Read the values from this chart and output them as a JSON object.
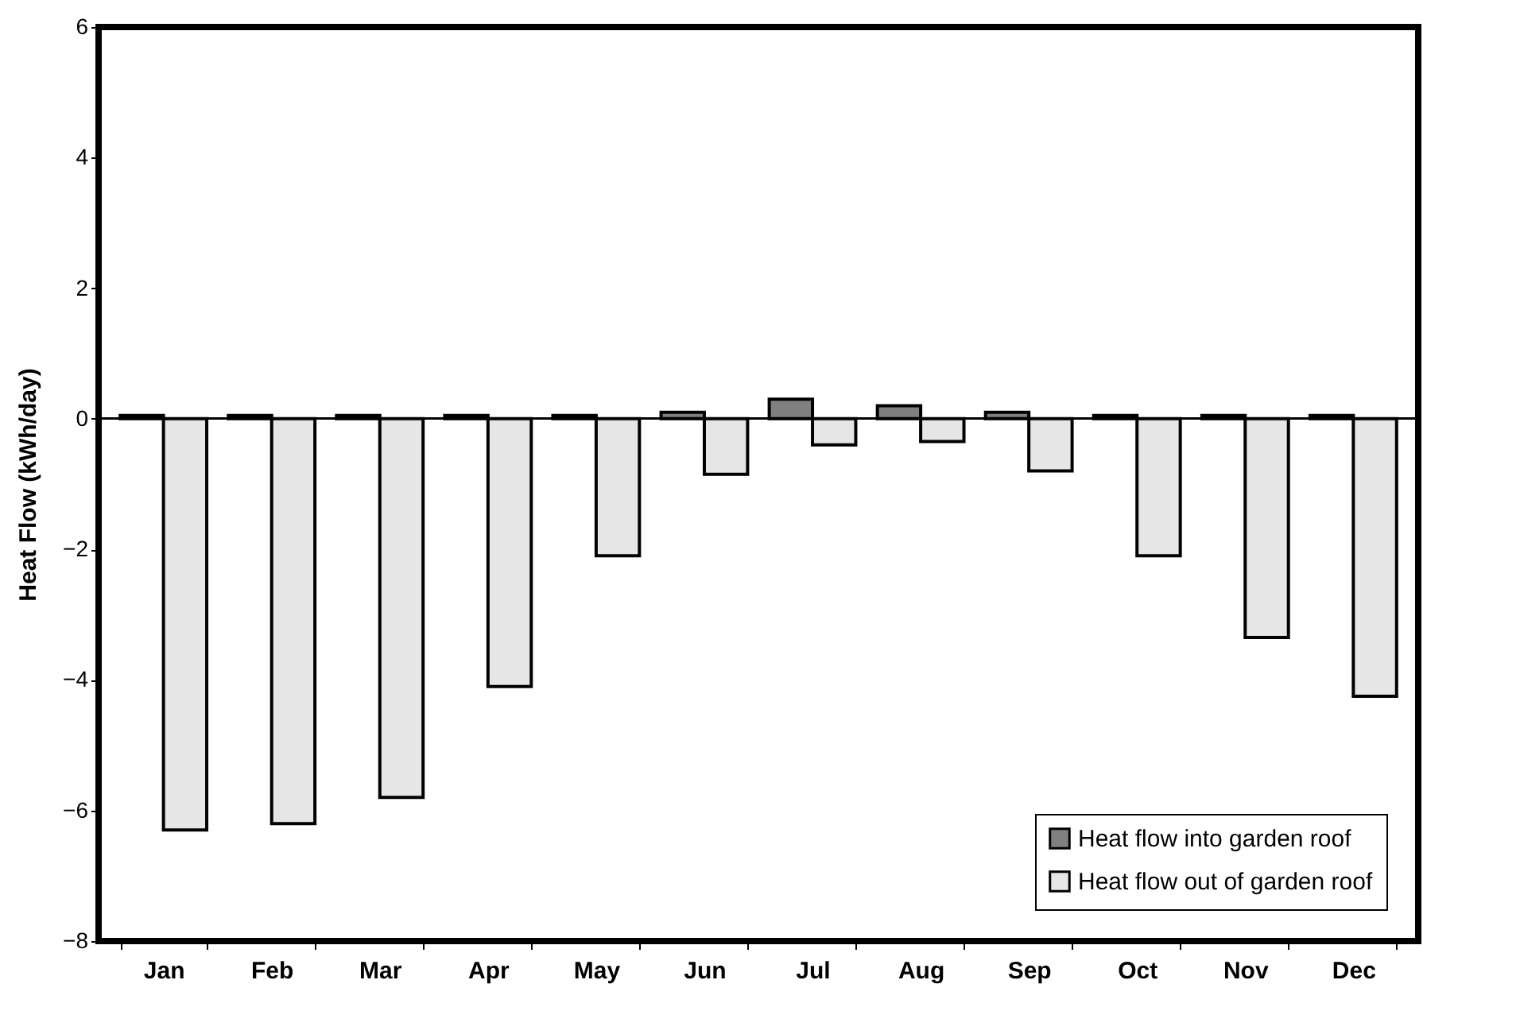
{
  "chart_data": {
    "type": "bar",
    "ylabel": "Heat Flow (kWh/day)",
    "categories": [
      "Jan",
      "Feb",
      "Mar",
      "Apr",
      "May",
      "Jun",
      "Jul",
      "Aug",
      "Sep",
      "Oct",
      "Nov",
      "Dec"
    ],
    "series": [
      {
        "name": "Heat flow into garden roof",
        "color": "#808080",
        "values": [
          0.05,
          0.05,
          0.05,
          0.05,
          0.05,
          0.1,
          0.3,
          0.2,
          0.1,
          0.05,
          0.05,
          0.05
        ]
      },
      {
        "name": "Heat flow out of garden roof",
        "color": "#e6e6e6",
        "values": [
          -6.3,
          -6.2,
          -5.8,
          -4.1,
          -2.1,
          -0.85,
          -0.4,
          -0.35,
          -0.8,
          -2.1,
          -3.35,
          -4.25
        ]
      }
    ],
    "ylim": [
      -8,
      6
    ],
    "yticks": [
      -8,
      -6,
      -4,
      -2,
      0,
      2,
      4,
      6
    ],
    "legend": "bottom right"
  }
}
